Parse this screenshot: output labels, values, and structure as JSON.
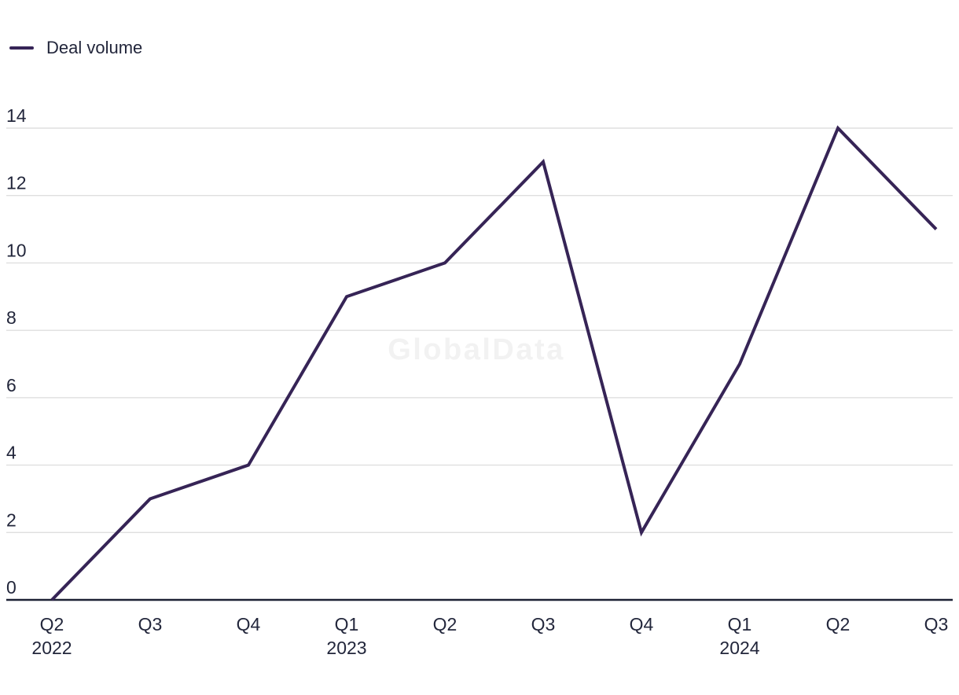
{
  "legend": {
    "label": "Deal volume"
  },
  "watermark": {
    "text": "GlobalData"
  },
  "colors": {
    "line": "#362456",
    "label_text": "#22263b",
    "grid": "#dfdfdf",
    "axis": "#1d2135",
    "watermark": "#f2f2f2"
  },
  "chart_data": {
    "type": "line",
    "title": "",
    "xlabel": "",
    "ylabel": "",
    "categories": [
      "Q2",
      "Q3",
      "Q4",
      "Q1",
      "Q2",
      "Q3",
      "Q4",
      "Q1",
      "Q2",
      "Q3"
    ],
    "category_years": {
      "0": "2022",
      "3": "2023",
      "7": "2024"
    },
    "series": [
      {
        "name": "Deal volume",
        "color": "#362456",
        "values": [
          0,
          3,
          4,
          9,
          10,
          13,
          2,
          7,
          14,
          11
        ]
      }
    ],
    "yticks": [
      0,
      2,
      4,
      6,
      8,
      10,
      12,
      14
    ],
    "ylim": [
      0,
      14
    ],
    "grid": true,
    "legend_position": "top-left"
  }
}
